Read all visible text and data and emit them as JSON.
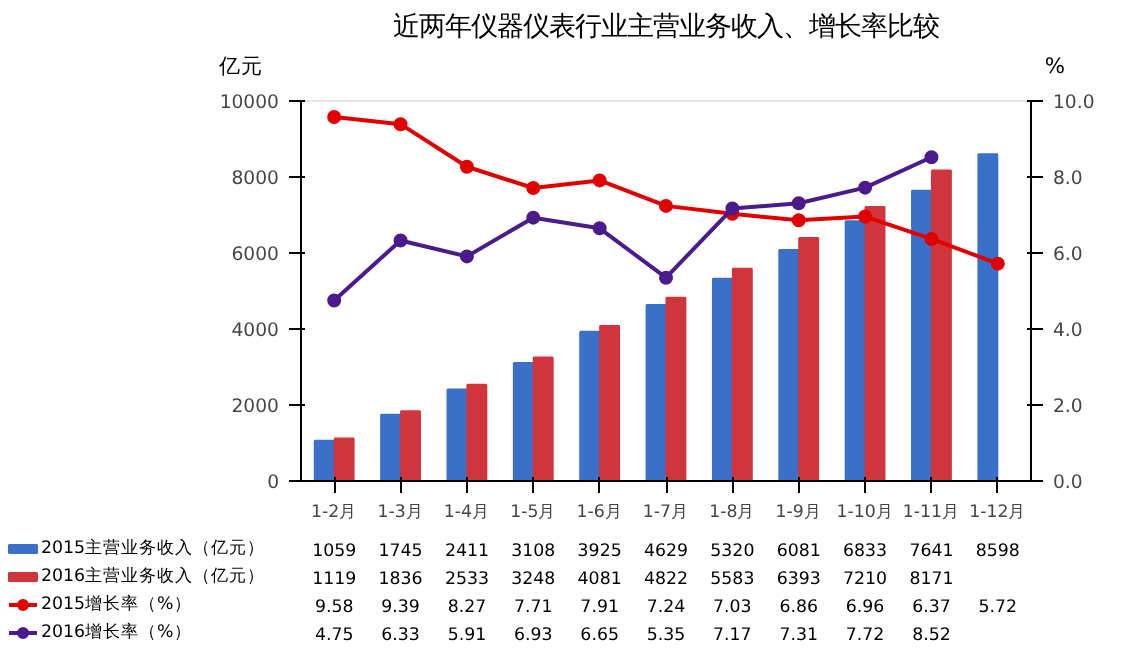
{
  "chart_data": {
    "type": "bar",
    "title": "近两年仪器仪表行业主营业务收入、增长率比较",
    "ylabel": "亿元",
    "y2label": "%",
    "categories": [
      "1-2月",
      "1-3月",
      "1-4月",
      "1-5月",
      "1-6月",
      "1-7月",
      "1-8月",
      "1-9月",
      "1-10月",
      "1-11月",
      "1-12月"
    ],
    "series": [
      {
        "name": "2015主营业务收入（亿元）",
        "color": "#3a70c8",
        "values": [
          1059,
          1745,
          2411,
          3108,
          3925,
          4629,
          5320,
          6081,
          6833,
          7641,
          8598
        ]
      },
      {
        "name": "2016主营业务收入（亿元）",
        "color": "#d0343c",
        "values": [
          1119,
          1836,
          2533,
          3248,
          4081,
          4822,
          5583,
          6393,
          7210,
          8171,
          null
        ]
      },
      {
        "name": "2015增长率（%）",
        "type": "line",
        "axis": "y2",
        "color": "#e00000",
        "values": [
          9.58,
          9.39,
          8.27,
          7.71,
          7.91,
          7.24,
          7.03,
          6.86,
          6.96,
          6.37,
          5.72
        ]
      },
      {
        "name": "2016增长率（%）",
        "type": "line",
        "axis": "y2",
        "color": "#4b1a8c",
        "values": [
          4.75,
          6.33,
          5.91,
          6.93,
          6.65,
          5.35,
          7.17,
          7.31,
          7.72,
          8.52,
          null
        ]
      }
    ],
    "ylim": [
      0,
      10000
    ],
    "yticks": [
      0,
      2000,
      4000,
      6000,
      8000,
      10000
    ],
    "y2lim": [
      0,
      10
    ],
    "y2ticks": [
      {
        "value": 0,
        "label": "0.0"
      },
      {
        "value": 2,
        "label": "2.0"
      },
      {
        "value": 4,
        "label": "4.0"
      },
      {
        "value": 6,
        "label": "6.0"
      },
      {
        "value": 8,
        "label": "8.0"
      },
      {
        "value": 10,
        "label": "10.0"
      }
    ],
    "marker": "circle",
    "grid": false,
    "legend": "bottom",
    "data_labels": true
  }
}
